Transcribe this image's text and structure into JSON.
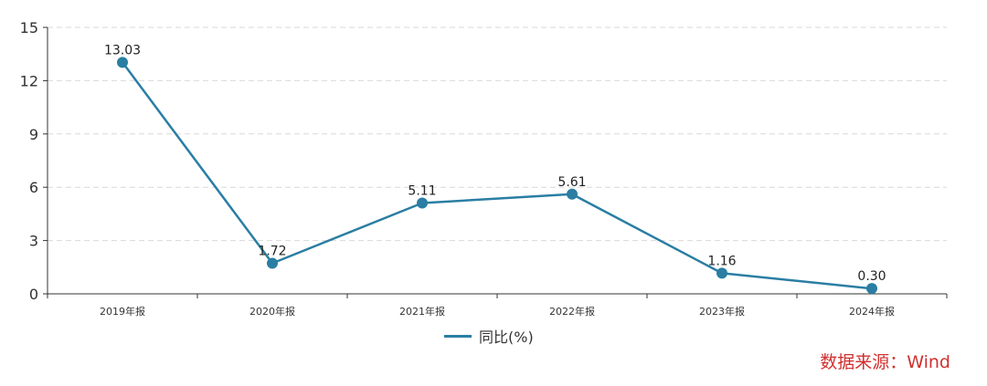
{
  "chart_data": {
    "type": "line",
    "categories": [
      "2019年报",
      "2020年报",
      "2021年报",
      "2022年报",
      "2023年报",
      "2024年报"
    ],
    "series": [
      {
        "name": "同比(%)",
        "values": [
          13.03,
          1.72,
          5.11,
          5.61,
          1.16,
          0.3
        ]
      }
    ],
    "data_labels": [
      "13.03",
      "1.72",
      "5.11",
      "5.61",
      "1.16",
      "0.30"
    ],
    "yticks": [
      "0",
      "3",
      "6",
      "9",
      "12",
      "15"
    ],
    "ylim": [
      0,
      15
    ],
    "grid": "horizontal dashed",
    "legend_position": "bottom-center",
    "title": "",
    "xlabel": "",
    "ylabel": ""
  },
  "legend": {
    "label": "同比(%)"
  },
  "source": {
    "text": "数据来源：Wind"
  },
  "colors": {
    "series": "#2a7ea3",
    "grid": "#d9d9d9",
    "axis": "#333333",
    "source": "#d0302f"
  }
}
